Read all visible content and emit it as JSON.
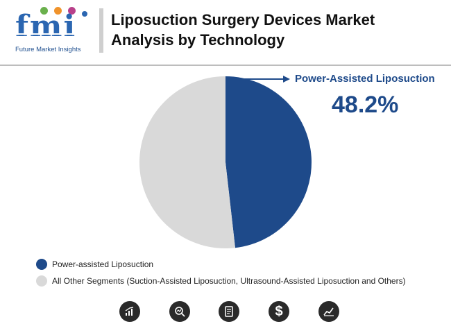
{
  "header": {
    "logo_text": "fmi",
    "logo_caption": "Future Market Insights",
    "title": "Liposuction Surgery Devices Market Analysis by Technology"
  },
  "callout": {
    "label": "Power-Assisted Liposuction",
    "value": "48.2%"
  },
  "chart_data": {
    "type": "pie",
    "title": "Liposuction Surgery Devices Market Analysis by Technology",
    "slices": [
      {
        "label": "Power-assisted Liposuction",
        "value": 48.2,
        "color": "#1e4a8a"
      },
      {
        "label": "All Other Segments (Suction-Assisted Liposuction, Ultrasound-Assisted Liposuction and Others)",
        "value": 51.8,
        "color": "#d9d9d9"
      }
    ],
    "legend_position": "bottom-left"
  },
  "legend": [
    {
      "label": "Power-assisted Liposuction",
      "color": "#1e4a8a"
    },
    {
      "label": "All Other Segments (Suction-Assisted Liposuction, Ultrasound-Assisted Liposuction and Others)",
      "color": "#d9d9d9"
    }
  ],
  "footer_icons": [
    "bar-chart-icon",
    "search-analytics-icon",
    "report-document-icon",
    "dollar-icon",
    "line-chart-icon"
  ],
  "colors": {
    "accent": "#1e4a8a",
    "other": "#d9d9d9",
    "logo": "#2b66b1"
  }
}
